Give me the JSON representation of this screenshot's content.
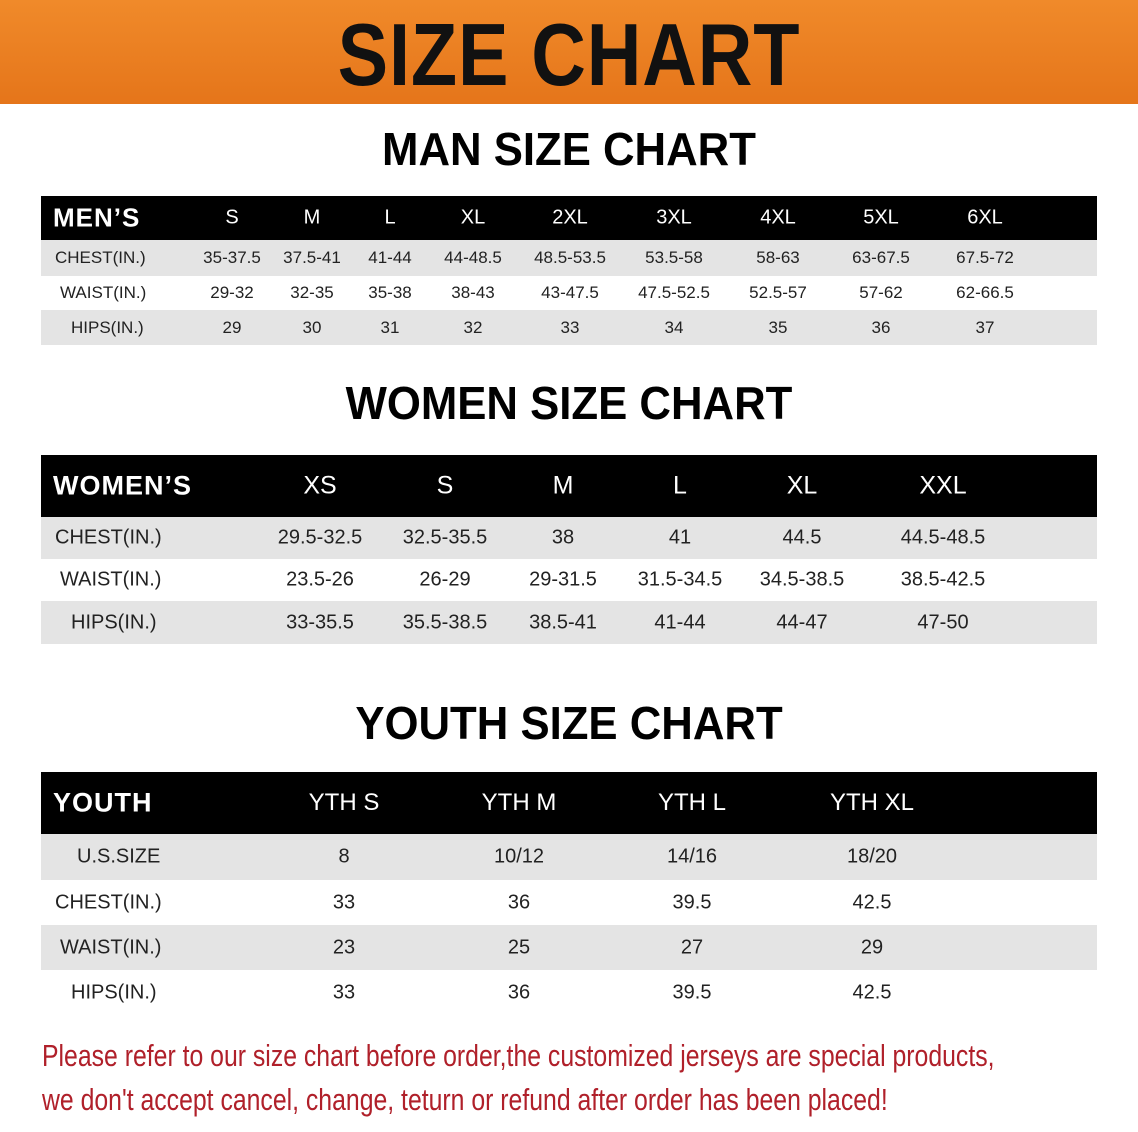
{
  "banner_title": "SIZE CHART",
  "men": {
    "title": "MAN SIZE CHART",
    "corner": "MEN’S",
    "sizes": [
      "S",
      "M",
      "L",
      "XL",
      "2XL",
      "3XL",
      "4XL",
      "5XL",
      "6XL"
    ],
    "rows": [
      {
        "label": "CHEST(IN.)",
        "values": [
          "35-37.5",
          "37.5-41",
          "41-44",
          "44-48.5",
          "48.5-53.5",
          "53.5-58",
          "58-63",
          "63-67.5",
          "67.5-72"
        ]
      },
      {
        "label": "WAIST(IN.)",
        "values": [
          "29-32",
          "32-35",
          "35-38",
          "38-43",
          "43-47.5",
          "47.5-52.5",
          "52.5-57",
          "57-62",
          "62-66.5"
        ]
      },
      {
        "label": "HIPS(IN.)",
        "values": [
          "29",
          "30",
          "31",
          "32",
          "33",
          "34",
          "35",
          "36",
          "37"
        ]
      }
    ]
  },
  "women": {
    "title": "WOMEN SIZE CHART",
    "corner": "WOMEN’S",
    "sizes": [
      "XS",
      "S",
      "M",
      "L",
      "XL",
      "XXL"
    ],
    "rows": [
      {
        "label": "CHEST(IN.)",
        "values": [
          "29.5-32.5",
          "32.5-35.5",
          "38",
          "41",
          "44.5",
          "44.5-48.5"
        ]
      },
      {
        "label": "WAIST(IN.)",
        "values": [
          "23.5-26",
          "26-29",
          "29-31.5",
          "31.5-34.5",
          "34.5-38.5",
          "38.5-42.5"
        ]
      },
      {
        "label": "HIPS(IN.)",
        "values": [
          "33-35.5",
          "35.5-38.5",
          "38.5-41",
          "41-44",
          "44-47",
          "47-50"
        ]
      }
    ]
  },
  "youth": {
    "title": "YOUTH SIZE CHART",
    "corner": "YOUTH",
    "sizes": [
      "YTH S",
      "YTH M",
      "YTH L",
      "YTH XL"
    ],
    "rows": [
      {
        "label": "U.S.SIZE",
        "values": [
          "8",
          "10/12",
          "14/16",
          "18/20"
        ]
      },
      {
        "label": "CHEST(IN.)",
        "values": [
          "33",
          "36",
          "39.5",
          "42.5"
        ]
      },
      {
        "label": "WAIST(IN.)",
        "values": [
          "23",
          "25",
          "27",
          "29"
        ]
      },
      {
        "label": "HIPS(IN.)",
        "values": [
          "33",
          "36",
          "39.5",
          "42.5"
        ]
      }
    ]
  },
  "notice": {
    "line1": "Please refer to our size chart before order,the customized jerseys are special products,",
    "line2": "we don't accept cancel, change, teturn or refund after order has been placed!"
  },
  "colors": {
    "banner": "#e9781f",
    "header_bg": "#000000",
    "alt_row": "#e4e4e4",
    "notice": "#b0202a"
  }
}
